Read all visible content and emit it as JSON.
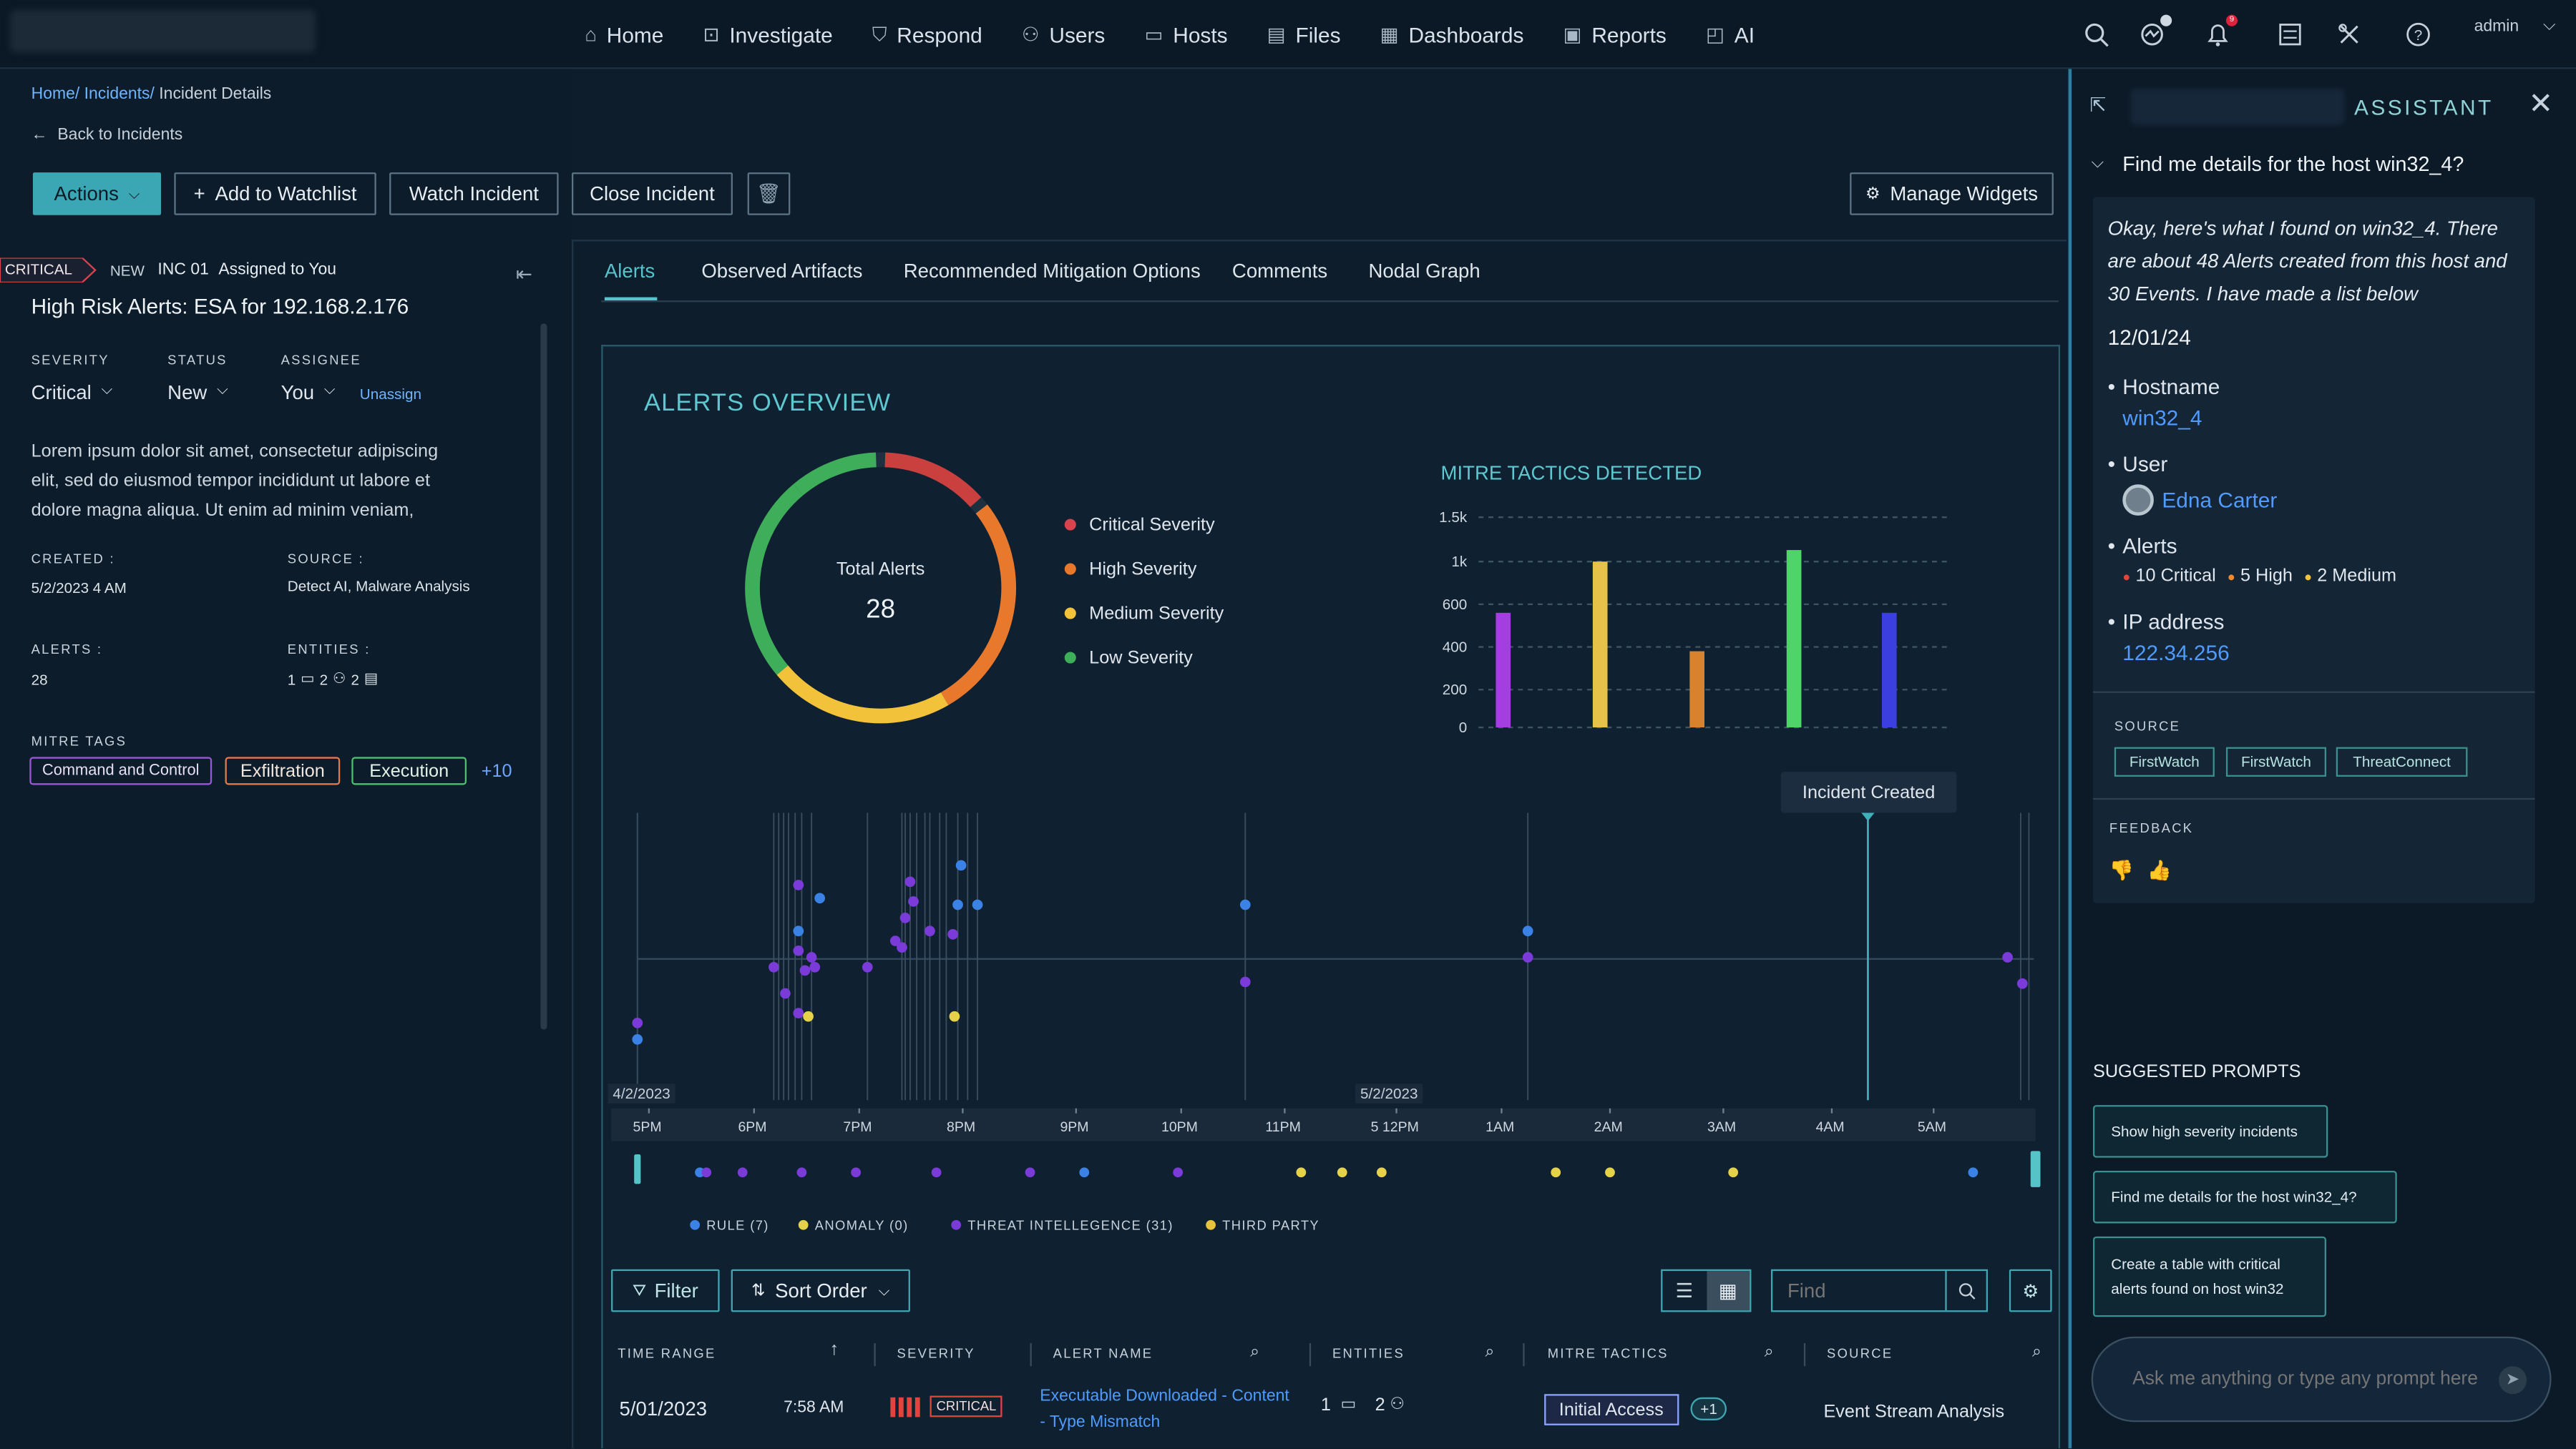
{
  "topbar": {
    "nav": [
      {
        "label": "Home",
        "icon": "home-icon"
      },
      {
        "label": "Investigate",
        "icon": "investigate-icon"
      },
      {
        "label": "Respond",
        "icon": "shield-icon"
      },
      {
        "label": "Users",
        "icon": "users-icon"
      },
      {
        "label": "Hosts",
        "icon": "hosts-icon"
      },
      {
        "label": "Files",
        "icon": "files-icon"
      },
      {
        "label": "Dashboards",
        "icon": "dashboard-icon"
      },
      {
        "label": "Reports",
        "icon": "reports-icon"
      },
      {
        "label": "AI",
        "icon": "ai-icon"
      }
    ],
    "notification_count": "9",
    "user": "admin"
  },
  "breadcrumb": {
    "home": "Home/",
    "incidents": "Incidents/",
    "current": "Incident Details"
  },
  "back_link": "Back to Incidents",
  "actions": {
    "actions_label": "Actions",
    "watchlist": "Add to Watchlist",
    "watch": "Watch Incident",
    "close": "Close Incident",
    "manage_widgets": "Manage Widgets"
  },
  "incident": {
    "priority": "CRITICAL",
    "state": "NEW",
    "id": "INC 01",
    "assigned": "Assigned to You",
    "title": "High Risk Alerts: ESA for  192.168.2.176",
    "severity_label": "SEVERITY",
    "severity": "Critical",
    "status_label": "STATUS",
    "status": "New",
    "assignee_label": "ASSIGNEE",
    "assignee": "You",
    "unassign": "Unassign",
    "description": "Lorem ipsum dolor sit amet, consectetur adipiscing elit, sed do eiusmod tempor incididunt ut labore et dolore magna aliqua. Ut enim ad minim veniam,",
    "created_label": "CREATED :",
    "created": "5/2/2023 4 AM",
    "source_label": "SOURCE :",
    "source": "Detect AI, Malware  Analysis",
    "alerts_label": "ALERTS :",
    "alerts": "28",
    "entities_label": "ENTITIES :",
    "entities": [
      "1",
      "2",
      "2"
    ],
    "mitre_label": "MITRE TAGS",
    "mitre_tags": [
      "Command and Control",
      "Exfiltration",
      "Execution"
    ],
    "mitre_more": "+10"
  },
  "tabs": [
    "Alerts",
    "Observed Artifacts",
    "Recommended Mitigation Options",
    "Comments",
    "Nodal Graph"
  ],
  "overview": {
    "title": "ALERTS OVERVIEW",
    "donut_label": "Total Alerts",
    "donut_value": "28",
    "legend": [
      {
        "label": "Critical Severity",
        "color": "#d8434e"
      },
      {
        "label": "High Severity",
        "color": "#e8782c"
      },
      {
        "label": "Medium Severity",
        "color": "#f2c23a"
      },
      {
        "label": "Low Severity",
        "color": "#3fae5a"
      }
    ]
  },
  "chart_data": {
    "type": "bar",
    "title": "MITRE TACTICS DETECTED",
    "yticks": [
      "1.5k",
      "1k",
      "600",
      "400",
      "200",
      "0"
    ],
    "values": [
      560,
      1000,
      380,
      1130,
      560
    ],
    "colors": [
      "#a43ee0",
      "#e6c24a",
      "#d9822e",
      "#4fd46a",
      "#3b3fe0"
    ]
  },
  "timeline": {
    "callout": "Incident Created",
    "date1": "4/2/2023",
    "date2": "5/2/2023",
    "ticks": [
      "5PM",
      "6PM",
      "7PM",
      "8PM",
      "9PM",
      "10PM",
      "11PM",
      "5 12PM",
      "1AM",
      "2AM",
      "3AM",
      "4AM",
      "5AM"
    ],
    "legend": [
      {
        "label": "RULE (7)",
        "color": "#3b82e6"
      },
      {
        "label": "ANOMALY (0)",
        "color": "#e6d24a"
      },
      {
        "label": "THREAT INTELLEGENCE (31)",
        "color": "#7a3bd9"
      },
      {
        "label": "THIRD PARTY",
        "color": "#e8c23a"
      }
    ]
  },
  "table": {
    "filter": "Filter",
    "sort": "Sort Order",
    "find_placeholder": "Find",
    "headers": [
      "TIME RANGE",
      "SEVERITY",
      "ALERT NAME",
      "ENTITIES",
      "MITRE TACTICS",
      "SOURCE"
    ],
    "row": {
      "date": "5/01/2023",
      "time": "7:58 AM",
      "severity": "CRITICAL",
      "alert_line1": "Executable Downloaded - Content",
      "alert_line2": "- Type Mismatch",
      "entities_hosts": "1",
      "entities_users": "2",
      "tactic": "Initial Access",
      "tactic_more": "+1",
      "source": "Event Stream Analysis"
    }
  },
  "assistant": {
    "title": "ASSISTANT",
    "question": "Find me details for the host win32_4?",
    "answer": "Okay, here's what I found on win32_4. There are about 48 Alerts created from this host and 30 Events. I have made a list below",
    "date": "12/01/24",
    "hostname_label": "Hostname",
    "hostname": "win32_4",
    "user_label": "User",
    "user": "Edna Carter",
    "alerts_label": "Alerts",
    "alerts": [
      {
        "text": "10 Critical",
        "color": "#e0443c"
      },
      {
        "text": "5 High",
        "color": "#f08a2c"
      },
      {
        "text": "2 Medium",
        "color": "#f2c23a"
      }
    ],
    "ip_label": "IP address",
    "ip": "122.34.256",
    "source_label": "SOURCE",
    "sources": [
      "FirstWatch",
      "FirstWatch",
      "ThreatConnect"
    ],
    "feedback_label": "FEEDBACK",
    "suggested_label": "SUGGESTED PROMPTS",
    "prompts": [
      "Show high severity incidents",
      "Find me details for the host win32_4?",
      "Create a table with critical alerts found on host win32"
    ],
    "input_placeholder": "Ask me anything or type any prompt here"
  }
}
